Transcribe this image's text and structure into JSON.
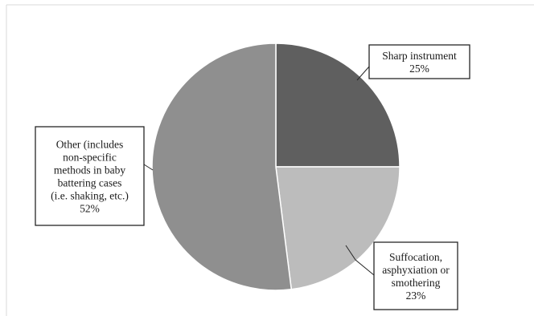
{
  "chart_data": {
    "type": "pie",
    "title": "",
    "slices": [
      {
        "label": "Sharp instrument",
        "value": 25,
        "color": "#5f5f5f"
      },
      {
        "label": "Suffocation, asphyxiation or smothering",
        "value": 23,
        "color": "#bcbcbc"
      },
      {
        "label": "Other (includes non-specific methods in baby battering cases (i.e. shaking, etc.)",
        "value": 52,
        "color": "#8f8f8f"
      }
    ],
    "data_labels": [
      {
        "lines": [
          "Sharp instrument"
        ],
        "pct": "25%"
      },
      {
        "lines": [
          "Suffocation,",
          "asphyxiation or",
          "smothering"
        ],
        "pct": "23%"
      },
      {
        "lines": [
          "Other (includes",
          "non-specific",
          "methods in baby",
          "battering cases",
          "(i.e. shaking, etc.)"
        ],
        "pct": "52%"
      }
    ],
    "legend": "none"
  }
}
